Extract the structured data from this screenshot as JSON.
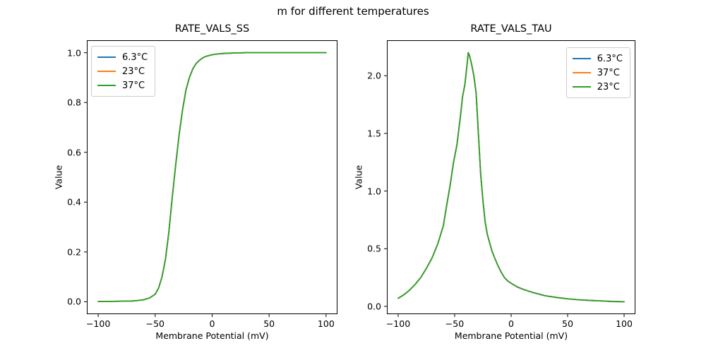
{
  "figure": {
    "suptitle": "m for different temperatures",
    "background_color": "#ffffff",
    "text_color": "#000000",
    "axis_color": "#000000"
  },
  "chart_data": [
    {
      "type": "line",
      "title": "RATE_VALS_SS",
      "xlabel": "Membrane Potential (mV)",
      "ylabel": "Value",
      "xlim": [
        -110,
        110
      ],
      "ylim": [
        -0.05,
        1.05
      ],
      "xticks": [
        -100,
        -50,
        0,
        50,
        100
      ],
      "xtick_labels": [
        "−100",
        "−50",
        "0",
        "50",
        "100"
      ],
      "yticks": [
        0,
        0.2,
        0.4,
        0.6,
        0.8,
        1.0
      ],
      "ytick_labels": [
        "0.0",
        "0.2",
        "0.4",
        "0.6",
        "0.8",
        "1.0"
      ],
      "grid": false,
      "legend": {
        "position": "upper-left",
        "entries": [
          {
            "label": "6.3°C",
            "color": "#1f77b4"
          },
          {
            "label": "23°C",
            "color": "#ff7f0e"
          },
          {
            "label": "37°C",
            "color": "#2ca02c"
          }
        ]
      },
      "series_overlap_note": "All three temperature series are identical and overlap exactly; only the last-drawn (green) line is visible.",
      "x": [
        -100,
        -90,
        -80,
        -70,
        -65,
        -60,
        -55,
        -50,
        -47,
        -44,
        -41,
        -38,
        -35,
        -32,
        -29,
        -26,
        -23,
        -20,
        -17,
        -14,
        -11,
        -8,
        -5,
        0,
        5,
        10,
        20,
        30,
        50,
        75,
        100
      ],
      "y_shared": [
        0.001,
        0.001,
        0.002,
        0.003,
        0.005,
        0.008,
        0.015,
        0.03,
        0.055,
        0.1,
        0.17,
        0.28,
        0.42,
        0.55,
        0.67,
        0.77,
        0.85,
        0.9,
        0.935,
        0.957,
        0.97,
        0.98,
        0.986,
        0.992,
        0.995,
        0.997,
        0.999,
        1.0,
        1.0,
        1.0,
        1.0
      ],
      "series": [
        {
          "name": "6.3°C",
          "color": "#1f77b4"
        },
        {
          "name": "23°C",
          "color": "#ff7f0e"
        },
        {
          "name": "37°C",
          "color": "#2ca02c"
        }
      ]
    },
    {
      "type": "line",
      "title": "RATE_VALS_TAU",
      "xlabel": "Membrane Potential (mV)",
      "ylabel": "Value",
      "xlim": [
        -110,
        110
      ],
      "ylim": [
        -0.068,
        2.308
      ],
      "xticks": [
        -100,
        -50,
        0,
        50,
        100
      ],
      "xtick_labels": [
        "−100",
        "−50",
        "0",
        "50",
        "100"
      ],
      "yticks": [
        0,
        0.5,
        1.0,
        1.5,
        2.0
      ],
      "ytick_labels": [
        "0.0",
        "0.5",
        "1.0",
        "1.5",
        "2.0"
      ],
      "grid": false,
      "legend": {
        "position": "upper-right",
        "entries": [
          {
            "label": "6.3°C",
            "color": "#1f77b4"
          },
          {
            "label": "37°C",
            "color": "#ff7f0e"
          },
          {
            "label": "23°C",
            "color": "#2ca02c"
          }
        ]
      },
      "series_overlap_note": "All three temperature series are identical and overlap exactly; only the last-drawn (green) line is visible. Peak ≈ 2.2 at ≈ −38 mV.",
      "x": [
        -100,
        -95,
        -90,
        -85,
        -80,
        -75,
        -70,
        -65,
        -60,
        -57,
        -54,
        -51,
        -48,
        -45,
        -43,
        -41,
        -39,
        -38,
        -37,
        -35,
        -33,
        -31,
        -29,
        -27,
        -25,
        -23,
        -21,
        -19,
        -17,
        -15,
        -12,
        -9,
        -6,
        -3,
        0,
        5,
        10,
        15,
        20,
        25,
        30,
        40,
        50,
        60,
        70,
        80,
        90,
        100
      ],
      "y_shared": [
        0.07,
        0.1,
        0.14,
        0.19,
        0.25,
        0.33,
        0.42,
        0.54,
        0.7,
        0.88,
        1.05,
        1.25,
        1.4,
        1.64,
        1.82,
        1.92,
        2.1,
        2.2,
        2.18,
        2.1,
        2.0,
        1.85,
        1.5,
        1.15,
        0.92,
        0.73,
        0.62,
        0.55,
        0.48,
        0.43,
        0.36,
        0.3,
        0.25,
        0.22,
        0.2,
        0.17,
        0.15,
        0.133,
        0.118,
        0.105,
        0.092,
        0.077,
        0.065,
        0.057,
        0.051,
        0.047,
        0.042,
        0.04
      ],
      "series": [
        {
          "name": "6.3°C",
          "color": "#1f77b4"
        },
        {
          "name": "37°C",
          "color": "#ff7f0e"
        },
        {
          "name": "23°C",
          "color": "#2ca02c"
        }
      ]
    }
  ]
}
